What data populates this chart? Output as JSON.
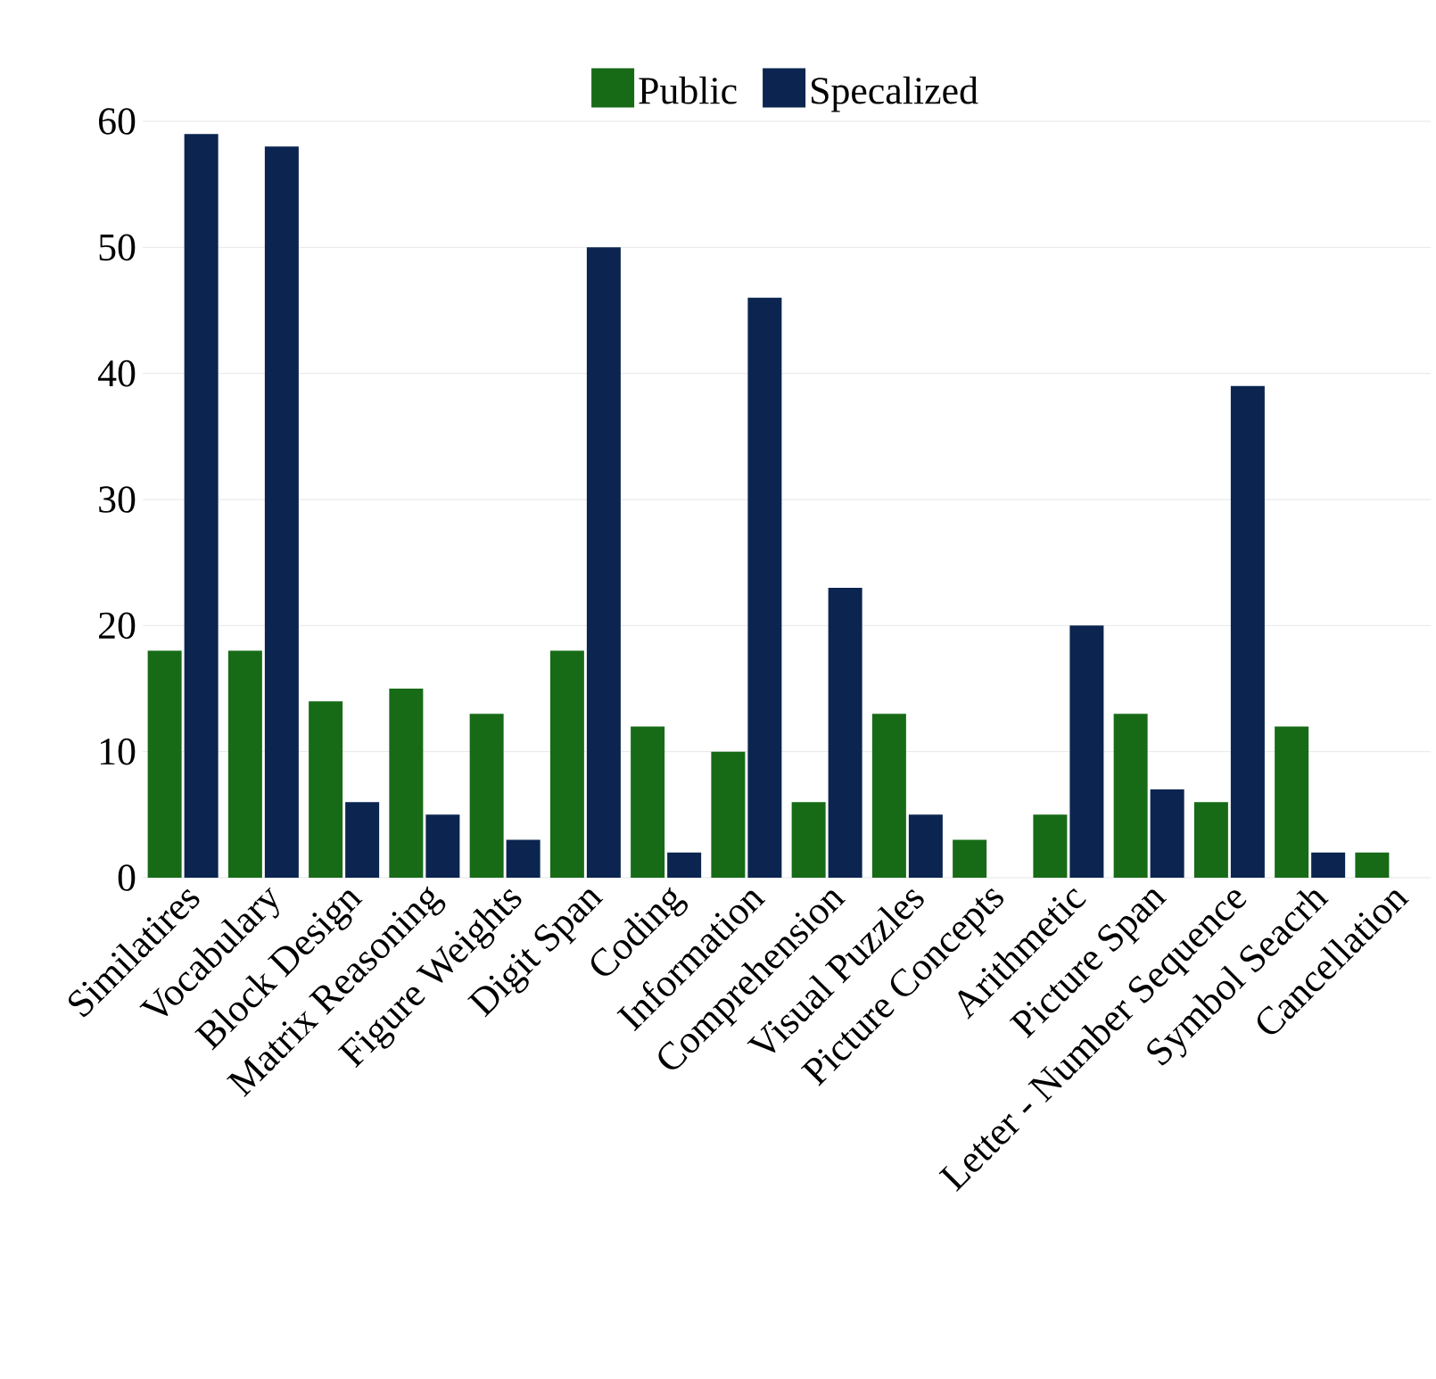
{
  "chart_data": {
    "type": "bar",
    "categories": [
      "Similatires",
      "Vocabulary",
      "Block Design",
      "Matrix Reasoning",
      "Figure Weights",
      "Digit Span",
      "Coding",
      "Information",
      "Comprehension",
      "Visual Puzzles",
      "Picture Concepts",
      "Arithmetic",
      "Picture Span",
      "Letter - Number Sequence",
      "Symbol Seacrh",
      "Cancellation"
    ],
    "series": [
      {
        "name": "Public",
        "color": "#176b17",
        "values": [
          18,
          18,
          14,
          15,
          13,
          18,
          12,
          10,
          6,
          13,
          3,
          5,
          13,
          6,
          12,
          2
        ]
      },
      {
        "name": "Specalized",
        "color": "#0b2550",
        "values": [
          59,
          58,
          6,
          5,
          3,
          50,
          2,
          46,
          23,
          5,
          0,
          20,
          7,
          39,
          2,
          0
        ]
      }
    ],
    "ylim": [
      0,
      60
    ],
    "yticks": [
      0,
      10,
      20,
      30,
      40,
      50,
      60
    ],
    "grid": "y",
    "legend": "top"
  }
}
